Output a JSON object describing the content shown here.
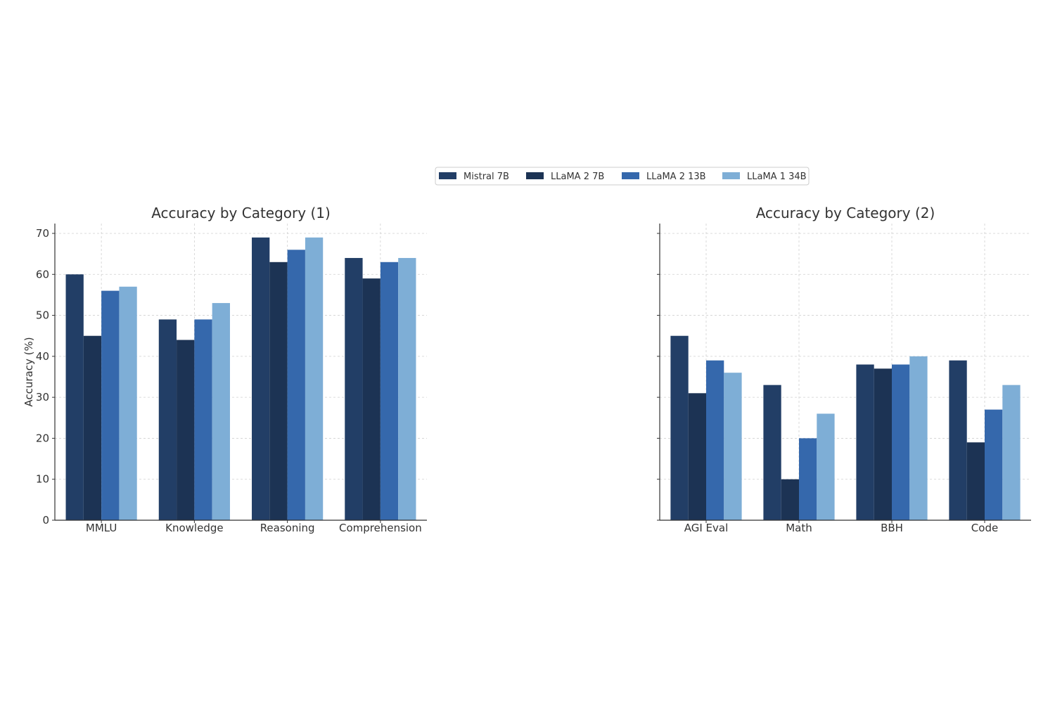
{
  "legend": {
    "placement": "top-center",
    "items": [
      {
        "label": "Mistral 7B",
        "color": "#223e66"
      },
      {
        "label": "LLaMA 2 7B",
        "color": "#1c3354"
      },
      {
        "label": "LLaMA 2 13B",
        "color": "#3568ac"
      },
      {
        "label": "LLaMA 1 34B",
        "color": "#7eaed6"
      }
    ]
  },
  "chart_data": [
    {
      "type": "bar",
      "title": "Accuracy by Category (1)",
      "xlabel": "",
      "ylabel": "Accuracy (%)",
      "ylim": [
        0,
        72
      ],
      "yticks": [
        0,
        10,
        20,
        30,
        40,
        50,
        60,
        70
      ],
      "grid": true,
      "categories": [
        "MMLU",
        "Knowledge",
        "Reasoning",
        "Comprehension"
      ],
      "series": [
        {
          "name": "Mistral 7B",
          "color": "#223e66",
          "values": [
            60,
            49,
            69,
            64
          ]
        },
        {
          "name": "LLaMA 2 7B",
          "color": "#1c3354",
          "values": [
            45,
            44,
            63,
            59
          ]
        },
        {
          "name": "LLaMA 2 13B",
          "color": "#3568ac",
          "values": [
            56,
            49,
            66,
            63
          ]
        },
        {
          "name": "LLaMA 1 34B",
          "color": "#7eaed6",
          "values": [
            57,
            53,
            69,
            64
          ]
        }
      ]
    },
    {
      "type": "bar",
      "title": "Accuracy by Category (2)",
      "xlabel": "",
      "ylabel": "",
      "ylim": [
        0,
        72
      ],
      "yticks": [
        0,
        10,
        20,
        30,
        40,
        50,
        60,
        70
      ],
      "show_tick_labels": false,
      "grid": true,
      "categories": [
        "AGI Eval",
        "Math",
        "BBH",
        "Code"
      ],
      "series": [
        {
          "name": "Mistral 7B",
          "color": "#223e66",
          "values": [
            45,
            33,
            38,
            39
          ]
        },
        {
          "name": "LLaMA 2 7B",
          "color": "#1c3354",
          "values": [
            31,
            10,
            37,
            19
          ]
        },
        {
          "name": "LLaMA 2 13B",
          "color": "#3568ac",
          "values": [
            39,
            20,
            38,
            27
          ]
        },
        {
          "name": "LLaMA 1 34B",
          "color": "#7eaed6",
          "values": [
            36,
            26,
            40,
            33
          ]
        }
      ]
    }
  ]
}
